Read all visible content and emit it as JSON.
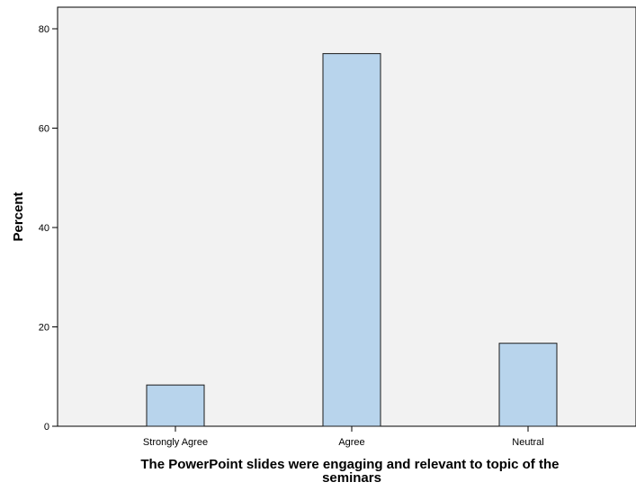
{
  "chart_data": {
    "type": "bar",
    "categories": [
      "Strongly Agree",
      "Agree",
      "Neutral"
    ],
    "values": [
      8.3,
      75.0,
      16.7
    ],
    "title": "",
    "xlabel": "The PowerPoint slides were engaging and relevant to topic of the seminars",
    "xlabel_lines": [
      "The PowerPoint slides were engaging and relevant to topic of the",
      "seminars"
    ],
    "ylabel": "Percent",
    "ylim": [
      0,
      85
    ],
    "yticks": [
      0,
      20,
      40,
      60,
      80
    ],
    "grid": false,
    "legend": "none",
    "colors": {
      "bar_fill": "#b8d4ec",
      "bar_stroke": "#1a1a1a",
      "plot_background": "#f2f2f2",
      "axis": "#000000"
    }
  }
}
